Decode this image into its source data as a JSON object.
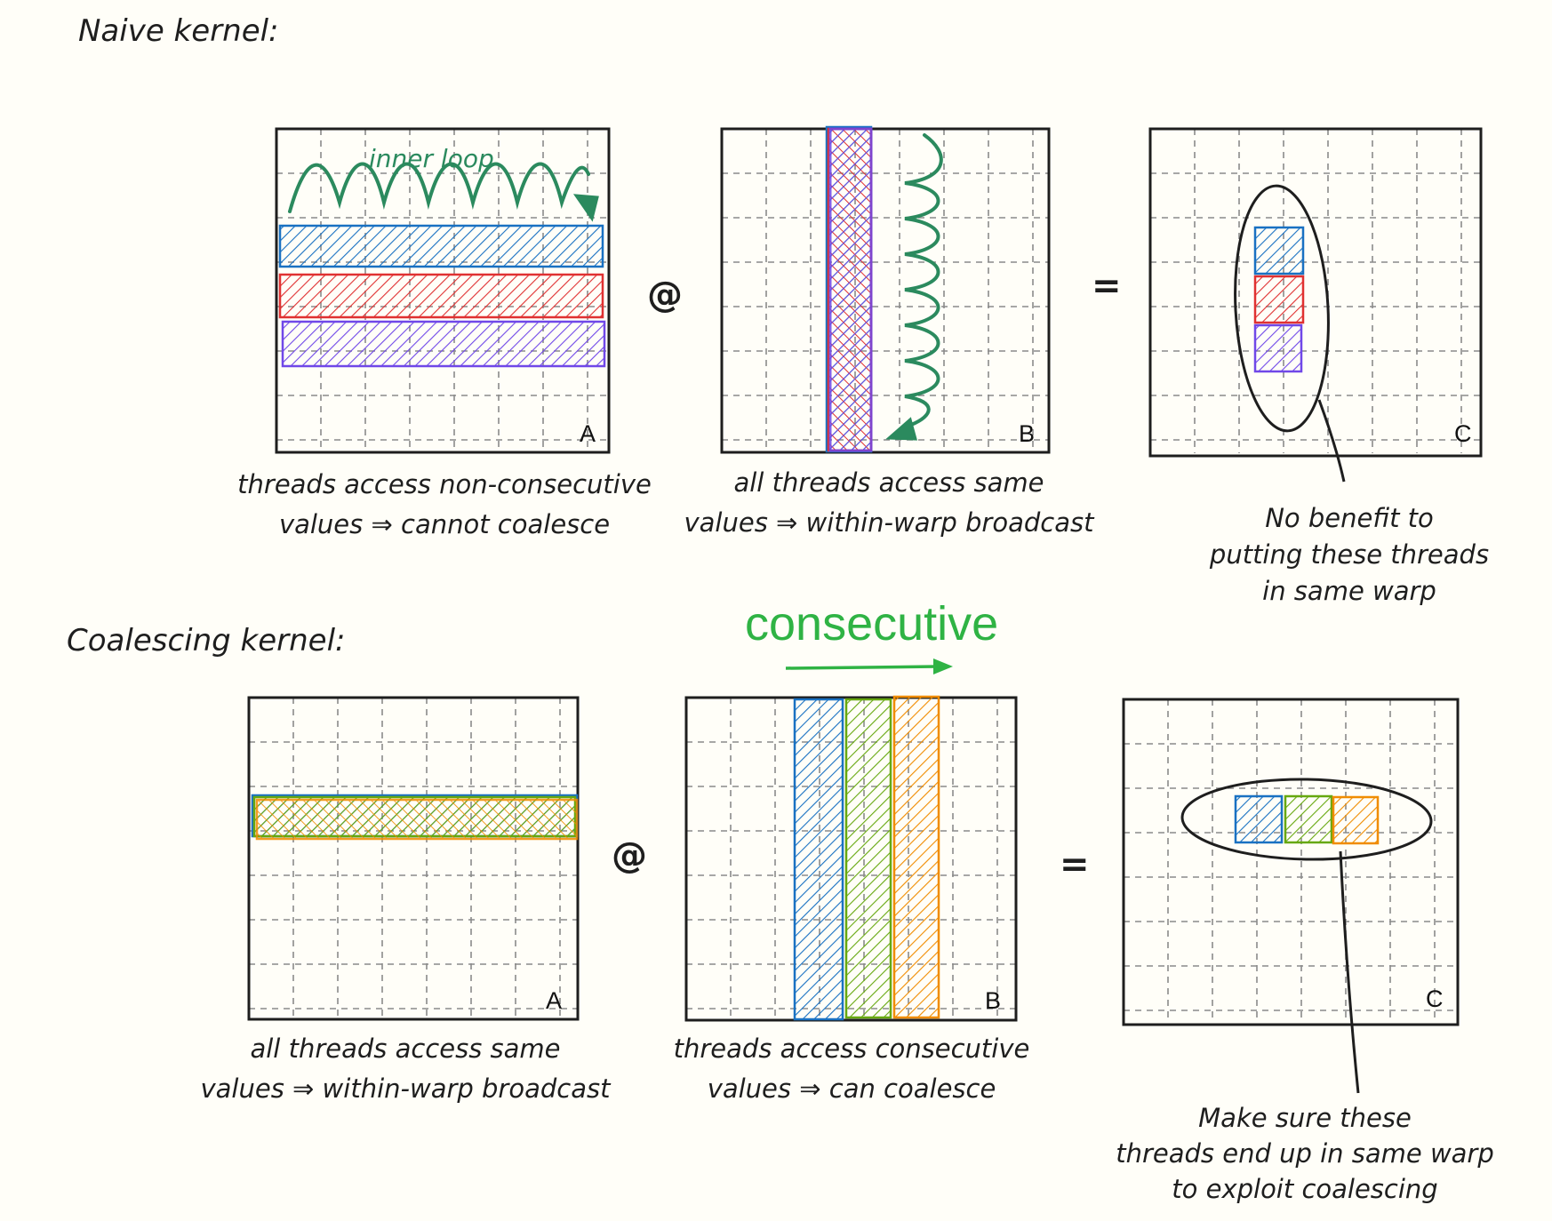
{
  "naive": {
    "heading": "Naive kernel:",
    "inner_loop_label": "inner loop",
    "matrix_a": {
      "label": "A",
      "caption": [
        "threads access non-consecutive",
        "values ⇒ cannot coalesce"
      ]
    },
    "operator_matmul": "@",
    "matrix_b": {
      "label": "B",
      "caption": [
        "all threads access same",
        "values ⇒ within-warp broadcast"
      ]
    },
    "operator_equals": "=",
    "matrix_c": {
      "label": "C",
      "caption": [
        "No benefit to",
        "putting these threads",
        "in same warp"
      ]
    }
  },
  "coalescing": {
    "heading": "Coalescing kernel:",
    "consecutive_label": "consecutive",
    "matrix_a": {
      "label": "A",
      "caption": [
        "all threads access same",
        "values ⇒ within-warp broadcast"
      ]
    },
    "operator_matmul": "@",
    "matrix_b": {
      "label": "B",
      "caption": [
        "threads access consecutive",
        "values ⇒ can coalesce"
      ]
    },
    "operator_equals": "=",
    "matrix_c": {
      "label": "C",
      "caption": [
        "Make sure these",
        "threads end up in same warp",
        "to exploit coalescing"
      ]
    }
  },
  "colors": {
    "blue": "#1971c2",
    "red": "#e03131",
    "purple": "#7048e8",
    "green_arrow": "#2b8a5e",
    "green_text": "#2fb344",
    "lime": "#66a80f",
    "orange": "#f08c00",
    "ink": "#1e1e1e"
  }
}
